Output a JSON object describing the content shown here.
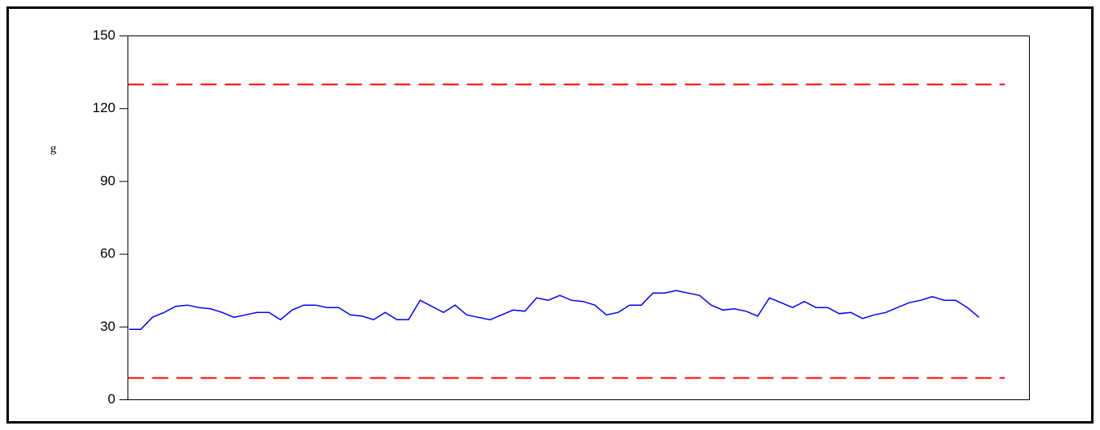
{
  "chart_data": {
    "type": "line",
    "ylabel": "g",
    "ylim": [
      0,
      150
    ],
    "yticks": [
      0,
      30,
      60,
      90,
      120,
      150
    ],
    "reference_lines": [
      {
        "value": 130,
        "color": "#ff0000"
      },
      {
        "value": 9,
        "color": "#ff0000"
      }
    ],
    "series": [
      {
        "color": "#0000ff",
        "values": [
          29,
          29,
          34,
          36,
          38.5,
          39,
          38,
          37.5,
          36,
          34,
          35,
          36,
          36,
          33,
          37,
          39,
          39,
          38,
          38,
          35,
          34.5,
          33,
          36,
          33,
          33,
          41,
          38.5,
          36,
          39,
          35,
          34,
          33,
          35,
          37,
          36.5,
          42,
          41,
          43,
          41,
          40.5,
          39,
          35,
          36,
          39,
          39,
          44,
          44,
          45,
          44,
          43,
          39,
          37,
          37.5,
          36.5,
          34.5,
          42,
          40,
          38,
          40.5,
          38,
          38,
          35.5,
          36,
          33.5,
          35,
          36,
          38,
          40,
          41,
          42.5,
          41,
          41,
          38,
          34
        ]
      }
    ]
  }
}
